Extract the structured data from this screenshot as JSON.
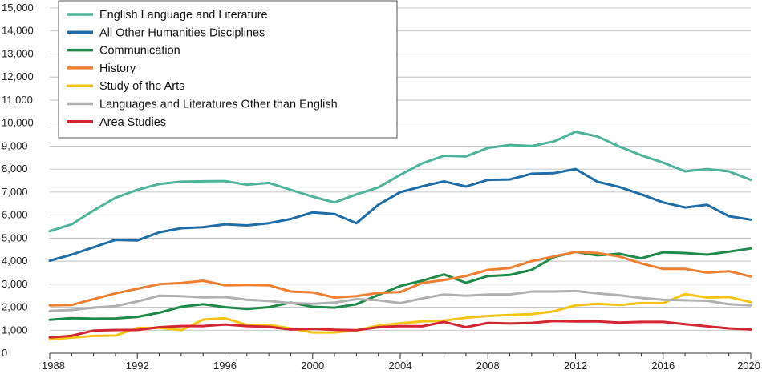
{
  "chart_data": {
    "type": "line",
    "x": [
      1988,
      1989,
      1990,
      1991,
      1992,
      1993,
      1994,
      1995,
      1996,
      1997,
      1998,
      1999,
      2000,
      2001,
      2002,
      2003,
      2004,
      2005,
      2006,
      2007,
      2008,
      2009,
      2010,
      2011,
      2012,
      2013,
      2014,
      2015,
      2016,
      2017,
      2018,
      2019,
      2020
    ],
    "xticks": [
      "1988",
      "1992",
      "1996",
      "2000",
      "2004",
      "2008",
      "2012",
      "2016",
      "2020"
    ],
    "yticks": [
      "0",
      "1,000",
      "2,000",
      "3,000",
      "4,000",
      "5,000",
      "6,000",
      "7,000",
      "8,000",
      "9,000",
      "10,000",
      "11,000",
      "12,000",
      "13,000",
      "14,000",
      "15,000"
    ],
    "xlim": [
      1988,
      2020
    ],
    "ylim": [
      0,
      15000
    ],
    "grid": "horizontal",
    "legend_position": "top-left",
    "series": [
      {
        "name": "English Language and Literature",
        "color": "#4db39a",
        "values": [
          5300,
          5600,
          6200,
          6750,
          7100,
          7350,
          7450,
          7470,
          7480,
          7320,
          7400,
          7100,
          6800,
          6550,
          6900,
          7200,
          7750,
          8250,
          8580,
          8550,
          8920,
          9050,
          9000,
          9200,
          9620,
          9420,
          8980,
          8600,
          8280,
          7900,
          8000,
          7900,
          7530
        ]
      },
      {
        "name": "All Other Humanities Disciplines",
        "color": "#1e6ca8",
        "values": [
          4020,
          4280,
          4600,
          4920,
          4900,
          5250,
          5430,
          5470,
          5600,
          5550,
          5650,
          5830,
          6120,
          6050,
          5650,
          6450,
          7000,
          7250,
          7470,
          7240,
          7530,
          7550,
          7800,
          7820,
          8000,
          7450,
          7220,
          6900,
          6550,
          6330,
          6450,
          5950,
          5800
        ]
      },
      {
        "name": "Communication",
        "color": "#1e8a48",
        "values": [
          1450,
          1520,
          1500,
          1510,
          1580,
          1760,
          2020,
          2130,
          2000,
          1920,
          2000,
          2200,
          2020,
          1980,
          2130,
          2530,
          2920,
          3150,
          3420,
          3060,
          3350,
          3400,
          3620,
          4170,
          4400,
          4250,
          4320,
          4120,
          4380,
          4350,
          4280,
          4410,
          4550
        ]
      },
      {
        "name": "History",
        "color": "#ef8033",
        "values": [
          2080,
          2100,
          2350,
          2600,
          2800,
          3000,
          3050,
          3150,
          2950,
          2970,
          2950,
          2680,
          2640,
          2420,
          2480,
          2620,
          2660,
          3050,
          3180,
          3350,
          3620,
          3700,
          4000,
          4200,
          4400,
          4350,
          4200,
          3900,
          3660,
          3660,
          3500,
          3560,
          3330
        ]
      },
      {
        "name": "Study of the Arts",
        "color": "#f5c416",
        "values": [
          600,
          680,
          750,
          770,
          1100,
          1100,
          1000,
          1460,
          1520,
          1230,
          1220,
          1080,
          900,
          900,
          1000,
          1200,
          1300,
          1380,
          1420,
          1540,
          1620,
          1660,
          1700,
          1820,
          2080,
          2150,
          2100,
          2180,
          2180,
          2570,
          2420,
          2440,
          2220
        ]
      },
      {
        "name": "Languages and Literatures Other than English",
        "color": "#b0b0b0",
        "values": [
          1830,
          1880,
          1980,
          2050,
          2250,
          2500,
          2480,
          2430,
          2440,
          2320,
          2270,
          2180,
          2150,
          2200,
          2350,
          2300,
          2180,
          2380,
          2550,
          2500,
          2550,
          2550,
          2680,
          2680,
          2700,
          2600,
          2520,
          2400,
          2320,
          2300,
          2280,
          2130,
          2080
        ]
      },
      {
        "name": "Area Studies",
        "color": "#d32532",
        "values": [
          690,
          760,
          980,
          1010,
          1010,
          1130,
          1180,
          1180,
          1250,
          1180,
          1150,
          1030,
          1060,
          1020,
          1000,
          1130,
          1180,
          1170,
          1360,
          1130,
          1320,
          1290,
          1320,
          1400,
          1380,
          1380,
          1330,
          1360,
          1360,
          1260,
          1170,
          1080,
          1030
        ]
      }
    ]
  }
}
